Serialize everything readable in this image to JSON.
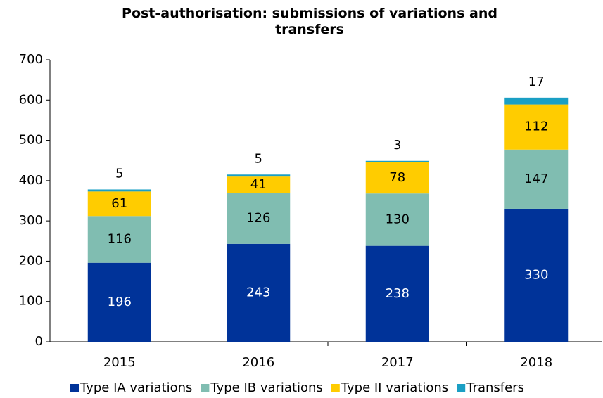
{
  "chart_data": {
    "type": "stacked_bar",
    "title": "Post-authorisation: submissions of  variations and transfers",
    "categories": [
      "2015",
      "2016",
      "2017",
      "2018"
    ],
    "series": [
      {
        "name": "Type IA variations",
        "color": "#003399",
        "values": [
          196,
          243,
          238,
          330
        ]
      },
      {
        "name": "Type IB variations",
        "color": "#80bdb1",
        "values": [
          116,
          126,
          130,
          147
        ]
      },
      {
        "name": "Type II variations",
        "color": "#ffcc00",
        "values": [
          61,
          41,
          78,
          112
        ]
      },
      {
        "name": "Transfers",
        "color": "#1a9fc4",
        "values": [
          5,
          5,
          3,
          17
        ]
      }
    ],
    "ylim": [
      0,
      700
    ],
    "yticks": [
      0,
      100,
      200,
      300,
      400,
      500,
      600,
      700
    ],
    "grid": false,
    "legend": "bottom"
  }
}
